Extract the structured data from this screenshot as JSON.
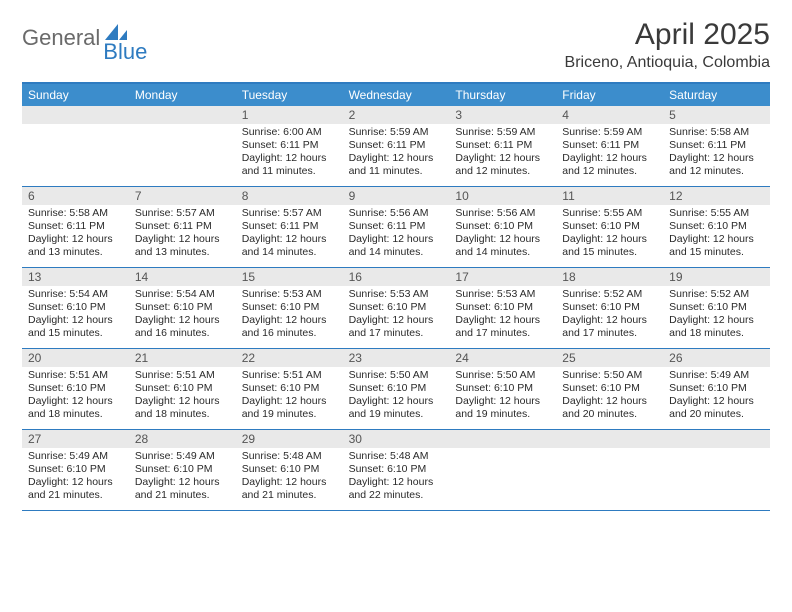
{
  "brand": {
    "part1": "General",
    "part2": "Blue",
    "color_gray": "#6a6a6a",
    "color_blue": "#2e7bc0"
  },
  "header": {
    "title": "April 2025",
    "location": "Briceno, Antioquia, Colombia"
  },
  "colors": {
    "header_bar": "#3c8dcc",
    "rule": "#2e7bc0",
    "daynum_bg": "#e9e9e9",
    "text": "#2a2a2a",
    "background": "#ffffff"
  },
  "days_of_week": [
    "Sunday",
    "Monday",
    "Tuesday",
    "Wednesday",
    "Thursday",
    "Friday",
    "Saturday"
  ],
  "weeks": [
    [
      null,
      null,
      {
        "n": "1",
        "sunrise": "Sunrise: 6:00 AM",
        "sunset": "Sunset: 6:11 PM",
        "daylight": "Daylight: 12 hours and 11 minutes."
      },
      {
        "n": "2",
        "sunrise": "Sunrise: 5:59 AM",
        "sunset": "Sunset: 6:11 PM",
        "daylight": "Daylight: 12 hours and 11 minutes."
      },
      {
        "n": "3",
        "sunrise": "Sunrise: 5:59 AM",
        "sunset": "Sunset: 6:11 PM",
        "daylight": "Daylight: 12 hours and 12 minutes."
      },
      {
        "n": "4",
        "sunrise": "Sunrise: 5:59 AM",
        "sunset": "Sunset: 6:11 PM",
        "daylight": "Daylight: 12 hours and 12 minutes."
      },
      {
        "n": "5",
        "sunrise": "Sunrise: 5:58 AM",
        "sunset": "Sunset: 6:11 PM",
        "daylight": "Daylight: 12 hours and 12 minutes."
      }
    ],
    [
      {
        "n": "6",
        "sunrise": "Sunrise: 5:58 AM",
        "sunset": "Sunset: 6:11 PM",
        "daylight": "Daylight: 12 hours and 13 minutes."
      },
      {
        "n": "7",
        "sunrise": "Sunrise: 5:57 AM",
        "sunset": "Sunset: 6:11 PM",
        "daylight": "Daylight: 12 hours and 13 minutes."
      },
      {
        "n": "8",
        "sunrise": "Sunrise: 5:57 AM",
        "sunset": "Sunset: 6:11 PM",
        "daylight": "Daylight: 12 hours and 14 minutes."
      },
      {
        "n": "9",
        "sunrise": "Sunrise: 5:56 AM",
        "sunset": "Sunset: 6:11 PM",
        "daylight": "Daylight: 12 hours and 14 minutes."
      },
      {
        "n": "10",
        "sunrise": "Sunrise: 5:56 AM",
        "sunset": "Sunset: 6:10 PM",
        "daylight": "Daylight: 12 hours and 14 minutes."
      },
      {
        "n": "11",
        "sunrise": "Sunrise: 5:55 AM",
        "sunset": "Sunset: 6:10 PM",
        "daylight": "Daylight: 12 hours and 15 minutes."
      },
      {
        "n": "12",
        "sunrise": "Sunrise: 5:55 AM",
        "sunset": "Sunset: 6:10 PM",
        "daylight": "Daylight: 12 hours and 15 minutes."
      }
    ],
    [
      {
        "n": "13",
        "sunrise": "Sunrise: 5:54 AM",
        "sunset": "Sunset: 6:10 PM",
        "daylight": "Daylight: 12 hours and 15 minutes."
      },
      {
        "n": "14",
        "sunrise": "Sunrise: 5:54 AM",
        "sunset": "Sunset: 6:10 PM",
        "daylight": "Daylight: 12 hours and 16 minutes."
      },
      {
        "n": "15",
        "sunrise": "Sunrise: 5:53 AM",
        "sunset": "Sunset: 6:10 PM",
        "daylight": "Daylight: 12 hours and 16 minutes."
      },
      {
        "n": "16",
        "sunrise": "Sunrise: 5:53 AM",
        "sunset": "Sunset: 6:10 PM",
        "daylight": "Daylight: 12 hours and 17 minutes."
      },
      {
        "n": "17",
        "sunrise": "Sunrise: 5:53 AM",
        "sunset": "Sunset: 6:10 PM",
        "daylight": "Daylight: 12 hours and 17 minutes."
      },
      {
        "n": "18",
        "sunrise": "Sunrise: 5:52 AM",
        "sunset": "Sunset: 6:10 PM",
        "daylight": "Daylight: 12 hours and 17 minutes."
      },
      {
        "n": "19",
        "sunrise": "Sunrise: 5:52 AM",
        "sunset": "Sunset: 6:10 PM",
        "daylight": "Daylight: 12 hours and 18 minutes."
      }
    ],
    [
      {
        "n": "20",
        "sunrise": "Sunrise: 5:51 AM",
        "sunset": "Sunset: 6:10 PM",
        "daylight": "Daylight: 12 hours and 18 minutes."
      },
      {
        "n": "21",
        "sunrise": "Sunrise: 5:51 AM",
        "sunset": "Sunset: 6:10 PM",
        "daylight": "Daylight: 12 hours and 18 minutes."
      },
      {
        "n": "22",
        "sunrise": "Sunrise: 5:51 AM",
        "sunset": "Sunset: 6:10 PM",
        "daylight": "Daylight: 12 hours and 19 minutes."
      },
      {
        "n": "23",
        "sunrise": "Sunrise: 5:50 AM",
        "sunset": "Sunset: 6:10 PM",
        "daylight": "Daylight: 12 hours and 19 minutes."
      },
      {
        "n": "24",
        "sunrise": "Sunrise: 5:50 AM",
        "sunset": "Sunset: 6:10 PM",
        "daylight": "Daylight: 12 hours and 19 minutes."
      },
      {
        "n": "25",
        "sunrise": "Sunrise: 5:50 AM",
        "sunset": "Sunset: 6:10 PM",
        "daylight": "Daylight: 12 hours and 20 minutes."
      },
      {
        "n": "26",
        "sunrise": "Sunrise: 5:49 AM",
        "sunset": "Sunset: 6:10 PM",
        "daylight": "Daylight: 12 hours and 20 minutes."
      }
    ],
    [
      {
        "n": "27",
        "sunrise": "Sunrise: 5:49 AM",
        "sunset": "Sunset: 6:10 PM",
        "daylight": "Daylight: 12 hours and 21 minutes."
      },
      {
        "n": "28",
        "sunrise": "Sunrise: 5:49 AM",
        "sunset": "Sunset: 6:10 PM",
        "daylight": "Daylight: 12 hours and 21 minutes."
      },
      {
        "n": "29",
        "sunrise": "Sunrise: 5:48 AM",
        "sunset": "Sunset: 6:10 PM",
        "daylight": "Daylight: 12 hours and 21 minutes."
      },
      {
        "n": "30",
        "sunrise": "Sunrise: 5:48 AM",
        "sunset": "Sunset: 6:10 PM",
        "daylight": "Daylight: 12 hours and 22 minutes."
      },
      null,
      null,
      null
    ]
  ]
}
